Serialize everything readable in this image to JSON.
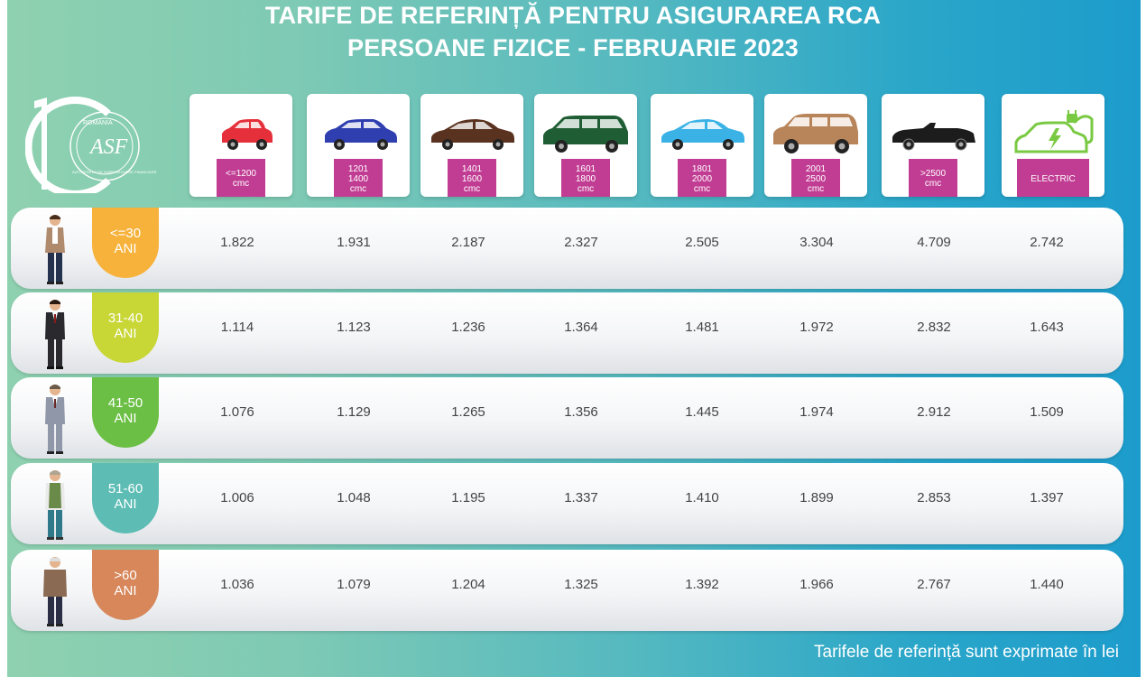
{
  "title": {
    "line1": "TARIFE DE REFERINȚĂ PENTRU ASIGURAREA RCA",
    "line2": "PERSOANE FIZICE - FEBRUARIE 2023"
  },
  "logo": {
    "arc_text": "ROMÂNIA",
    "inner_text": "AUTORITATEA DE SUPRAVEGHERE FINANCIARĂ",
    "monogram": "ASF"
  },
  "colors": {
    "accent_badge": "#c13d93",
    "age_tabs": [
      "#f7b23b",
      "#c8d636",
      "#6bbf45",
      "#5dbdb4",
      "#d7875a"
    ]
  },
  "columns": [
    {
      "line1": "<=1200",
      "line2": "cmc",
      "icon": "small-hatchback-icon",
      "color": "#e5303b"
    },
    {
      "line1": "1201",
      "line2": "1400",
      "line3": "cmc",
      "icon": "compact-car-icon",
      "color": "#2f3fb0"
    },
    {
      "line1": "1401",
      "line2": "1600",
      "line3": "cmc",
      "icon": "sedan-car-icon",
      "color": "#5a3220"
    },
    {
      "line1": "1601",
      "line2": "1800",
      "line3": "cmc",
      "icon": "minivan-icon",
      "color": "#1f5e34"
    },
    {
      "line1": "1801",
      "line2": "2000",
      "line3": "cmc",
      "icon": "sedan-car-icon",
      "color": "#3bb2e6"
    },
    {
      "line1": "2001",
      "line2": "2500",
      "line3": "cmc",
      "icon": "suv-icon",
      "color": "#b8845a"
    },
    {
      "line1": ">2500",
      "line2": "cmc",
      "icon": "convertible-car-icon",
      "color": "#1c1c1c"
    },
    {
      "line1": "ELECTRIC",
      "icon": "electric-car-icon",
      "color": "#7ac943"
    }
  ],
  "rows": [
    {
      "age1": "<=30",
      "age2": "ANI",
      "person_icon": "young-man-icon",
      "values": [
        "1.822",
        "1.931",
        "2.187",
        "2.327",
        "2.505",
        "3.304",
        "4.709",
        "2.742"
      ]
    },
    {
      "age1": "31-40",
      "age2": "ANI",
      "person_icon": "man-in-suit-icon",
      "values": [
        "1.114",
        "1.123",
        "1.236",
        "1.364",
        "1.481",
        "1.972",
        "2.832",
        "1.643"
      ]
    },
    {
      "age1": "41-50",
      "age2": "ANI",
      "person_icon": "middle-aged-man-icon",
      "values": [
        "1.076",
        "1.129",
        "1.265",
        "1.356",
        "1.445",
        "1.974",
        "2.912",
        "1.509"
      ]
    },
    {
      "age1": "51-60",
      "age2": "ANI",
      "person_icon": "man-in-vest-icon",
      "values": [
        "1.006",
        "1.048",
        "1.195",
        "1.337",
        "1.410",
        "1.899",
        "2.853",
        "1.397"
      ]
    },
    {
      "age1": ">60",
      "age2": "ANI",
      "person_icon": "elderly-man-icon",
      "values": [
        "1.036",
        "1.079",
        "1.204",
        "1.325",
        "1.392",
        "1.966",
        "2.767",
        "1.440"
      ]
    }
  ],
  "footer": "Tarifele de referință sunt exprimate în lei"
}
